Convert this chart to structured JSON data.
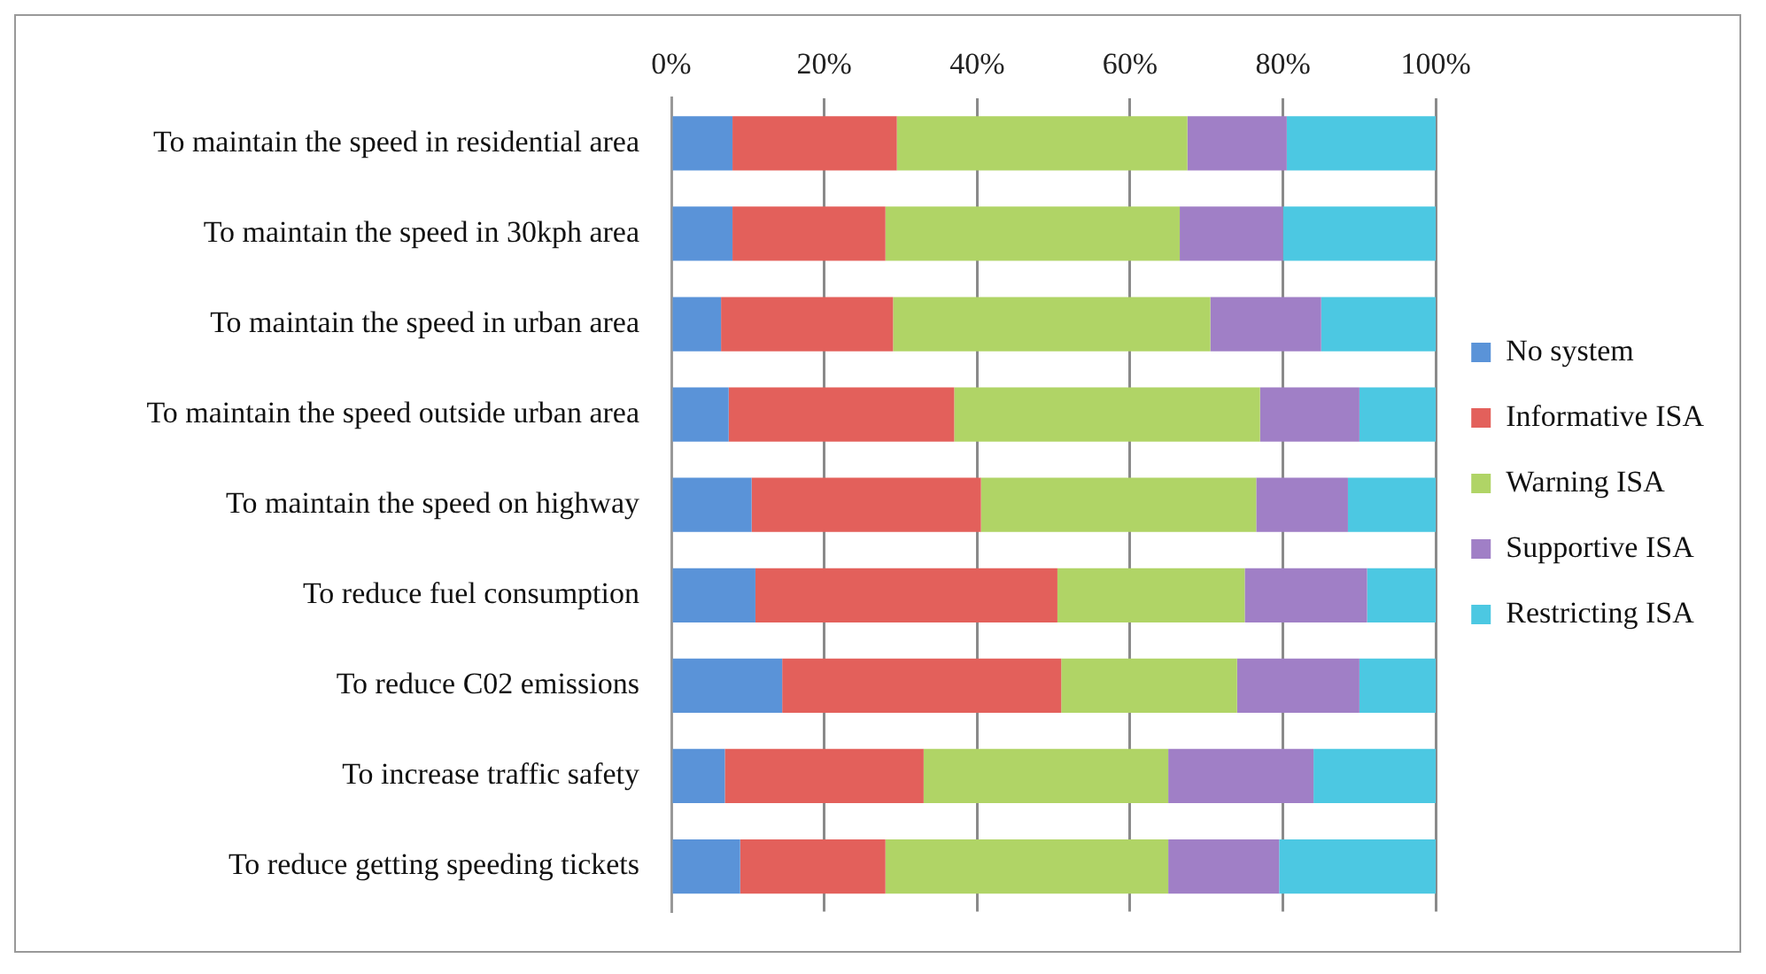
{
  "chart_data": {
    "type": "bar",
    "orientation": "horizontal",
    "stacked": true,
    "categories": [
      "To maintain the speed in residential area",
      "To maintain the speed in 30kph area",
      "To maintain the speed in urban area",
      "To maintain the speed outside urban area",
      "To maintain the speed on highway",
      "To reduce fuel consumption",
      "To reduce C02 emissions",
      "To increase traffic safety",
      "To reduce getting speeding tickets"
    ],
    "series": [
      {
        "name": "No system",
        "color": "#5a93d8",
        "values": [
          8,
          8,
          6.5,
          7.5,
          10.5,
          11,
          14.5,
          7,
          9
        ]
      },
      {
        "name": "Informative ISA",
        "color": "#e3605b",
        "values": [
          21.5,
          20,
          22.5,
          29.5,
          30,
          39.5,
          36.5,
          26,
          19
        ]
      },
      {
        "name": "Warning ISA",
        "color": "#b0d466",
        "values": [
          38,
          38.5,
          41.5,
          40,
          36,
          24.5,
          23,
          32,
          37
        ]
      },
      {
        "name": "Supportive ISA",
        "color": "#a07fc6",
        "values": [
          13,
          13.5,
          14.5,
          13,
          12,
          16,
          16,
          19,
          14.5
        ]
      },
      {
        "name": "Restricting ISA",
        "color": "#4cc8e2",
        "values": [
          19.5,
          20,
          15,
          10,
          11.5,
          9,
          10,
          16,
          20.5
        ]
      }
    ],
    "xlim": [
      0,
      100
    ],
    "xticks": [
      {
        "value": 0,
        "label": "0%"
      },
      {
        "value": 20,
        "label": "20%"
      },
      {
        "value": 40,
        "label": "40%"
      },
      {
        "value": 60,
        "label": "60%"
      },
      {
        "value": 80,
        "label": "80%"
      },
      {
        "value": 100,
        "label": "100%"
      }
    ],
    "grid": "x",
    "legend": "right"
  }
}
